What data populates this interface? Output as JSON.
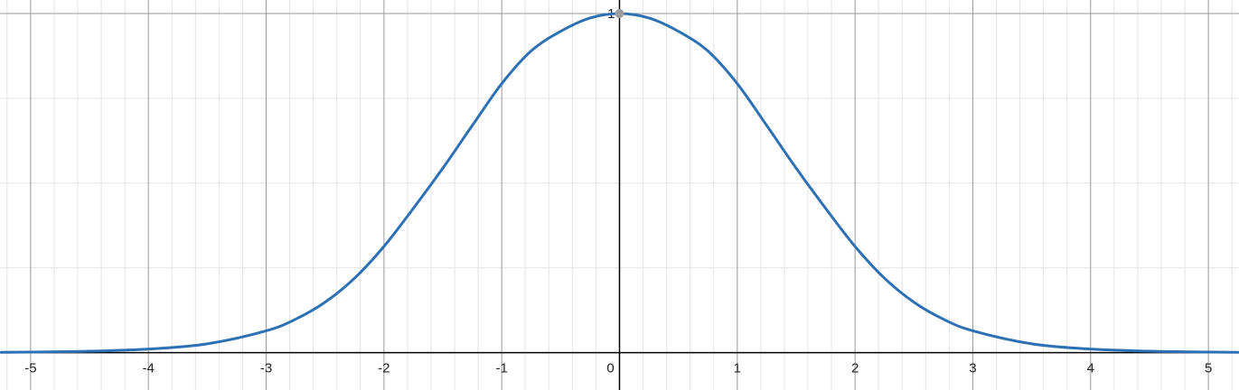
{
  "chart_data": {
    "type": "line",
    "title": "",
    "xlabel": "",
    "ylabel": "",
    "xlim": [
      -5.26,
      5.26
    ],
    "ylim": [
      -0.11,
      1.04
    ],
    "grid": true,
    "x_ticks": [
      "-5",
      "-4",
      "-3",
      "-2",
      "-1",
      "0",
      "1",
      "2",
      "3",
      "4",
      "5"
    ],
    "y_ticks": [
      "1"
    ],
    "series": [
      {
        "color": "#2d70b3",
        "x": [
          -5.25,
          -5.0,
          -4.5,
          -4.0,
          -3.5,
          -3.0,
          -2.75,
          -2.5,
          -2.25,
          -2.0,
          -1.75,
          -1.5,
          -1.25,
          -1.0,
          -0.75,
          -0.5,
          -0.25,
          0.0,
          0.25,
          0.5,
          0.75,
          1.0,
          1.25,
          1.5,
          1.75,
          2.0,
          2.25,
          2.5,
          2.75,
          3.0,
          3.5,
          4.0,
          4.5,
          5.0,
          5.25
        ],
        "y": [
          0.001,
          0.0018,
          0.0044,
          0.0107,
          0.0262,
          0.0646,
          0.0988,
          0.1488,
          0.2196,
          0.3133,
          0.4258,
          0.5441,
          0.6699,
          0.7932,
          0.8898,
          0.9475,
          0.9868,
          1.0,
          0.9868,
          0.9475,
          0.8898,
          0.7932,
          0.6699,
          0.5441,
          0.4258,
          0.3133,
          0.2196,
          0.1488,
          0.0988,
          0.0646,
          0.0262,
          0.0107,
          0.0044,
          0.0018,
          0.001
        ]
      }
    ],
    "points": [
      {
        "x": 0,
        "y": 1,
        "color": "#9e9e9e"
      }
    ]
  }
}
